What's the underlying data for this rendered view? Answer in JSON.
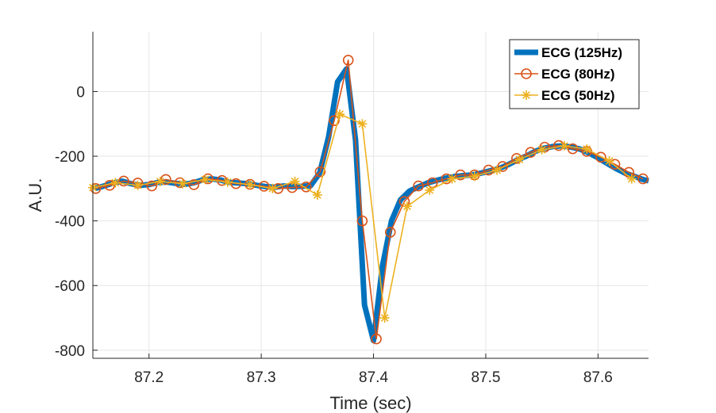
{
  "chart_data": {
    "type": "line",
    "title": "",
    "xlabel": "Time (sec)",
    "ylabel": "A.U.",
    "xlim": [
      87.15,
      87.645
    ],
    "ylim": [
      -825,
      185
    ],
    "xticks": [
      87.2,
      87.3,
      87.4,
      87.5,
      87.6
    ],
    "yticks": [
      -800,
      -600,
      -400,
      -200,
      0
    ],
    "xtick_labels": [
      "87.2",
      "87.3",
      "87.4",
      "87.5",
      "87.6"
    ],
    "ytick_labels": [
      "-800",
      "-600",
      "-400",
      "-200",
      "0"
    ],
    "grid": true,
    "legend_position": "top-right",
    "series": [
      {
        "name": "ECG (125Hz)",
        "color": "#0072BD",
        "marker": "none",
        "x": [
          87.152,
          87.16,
          87.168,
          87.176,
          87.184,
          87.192,
          87.2,
          87.208,
          87.216,
          87.224,
          87.232,
          87.24,
          87.248,
          87.256,
          87.264,
          87.272,
          87.28,
          87.288,
          87.296,
          87.304,
          87.312,
          87.32,
          87.328,
          87.336,
          87.344,
          87.352,
          87.36,
          87.368,
          87.376,
          87.384,
          87.392,
          87.4,
          87.408,
          87.416,
          87.424,
          87.432,
          87.44,
          87.448,
          87.456,
          87.464,
          87.472,
          87.48,
          87.488,
          87.496,
          87.504,
          87.512,
          87.52,
          87.528,
          87.536,
          87.544,
          87.552,
          87.56,
          87.568,
          87.576,
          87.584,
          87.592,
          87.6,
          87.608,
          87.616,
          87.624,
          87.632,
          87.64,
          87.645
        ],
        "y": [
          -300,
          -292,
          -283,
          -277,
          -285,
          -290,
          -288,
          -281,
          -280,
          -284,
          -287,
          -282,
          -273,
          -270,
          -274,
          -281,
          -283,
          -285,
          -290,
          -294,
          -296,
          -292,
          -294,
          -293,
          -291,
          -252,
          -140,
          30,
          70,
          -150,
          -660,
          -770,
          -540,
          -400,
          -335,
          -308,
          -295,
          -283,
          -275,
          -268,
          -263,
          -260,
          -258,
          -252,
          -245,
          -238,
          -226,
          -212,
          -200,
          -185,
          -175,
          -170,
          -168,
          -172,
          -178,
          -190,
          -205,
          -222,
          -238,
          -252,
          -262,
          -272,
          -276
        ]
      },
      {
        "name": "ECG (80Hz)",
        "color": "#D95319",
        "marker": "o",
        "x": [
          87.1525,
          87.165,
          87.1775,
          87.19,
          87.2025,
          87.215,
          87.2275,
          87.24,
          87.2525,
          87.265,
          87.2775,
          87.29,
          87.3025,
          87.315,
          87.3275,
          87.34,
          87.3525,
          87.365,
          87.3775,
          87.39,
          87.4025,
          87.415,
          87.4275,
          87.44,
          87.4525,
          87.465,
          87.4775,
          87.49,
          87.5025,
          87.515,
          87.5275,
          87.54,
          87.5525,
          87.565,
          87.5775,
          87.59,
          87.6025,
          87.615,
          87.6275,
          87.64
        ],
        "y": [
          -300,
          -290,
          -277,
          -283,
          -292,
          -272,
          -282,
          -288,
          -270,
          -275,
          -285,
          -287,
          -293,
          -300,
          -297,
          -295,
          -248,
          -90,
          97,
          -400,
          -765,
          -435,
          -340,
          -292,
          -282,
          -270,
          -258,
          -258,
          -243,
          -232,
          -207,
          -188,
          -172,
          -167,
          -177,
          -185,
          -203,
          -225,
          -250,
          -270
        ]
      },
      {
        "name": "ECG (50Hz)",
        "color": "#EDB120",
        "marker": "*",
        "x": [
          87.15,
          87.17,
          87.19,
          87.21,
          87.23,
          87.25,
          87.27,
          87.29,
          87.31,
          87.33,
          87.35,
          87.37,
          87.39,
          87.41,
          87.43,
          87.45,
          87.47,
          87.49,
          87.51,
          87.53,
          87.55,
          87.57,
          87.59,
          87.61,
          87.63
        ],
        "y": [
          -297,
          -282,
          -290,
          -278,
          -285,
          -272,
          -280,
          -288,
          -300,
          -278,
          -320,
          -70,
          -100,
          -700,
          -355,
          -305,
          -270,
          -262,
          -243,
          -210,
          -180,
          -168,
          -178,
          -215,
          -270
        ]
      }
    ]
  }
}
